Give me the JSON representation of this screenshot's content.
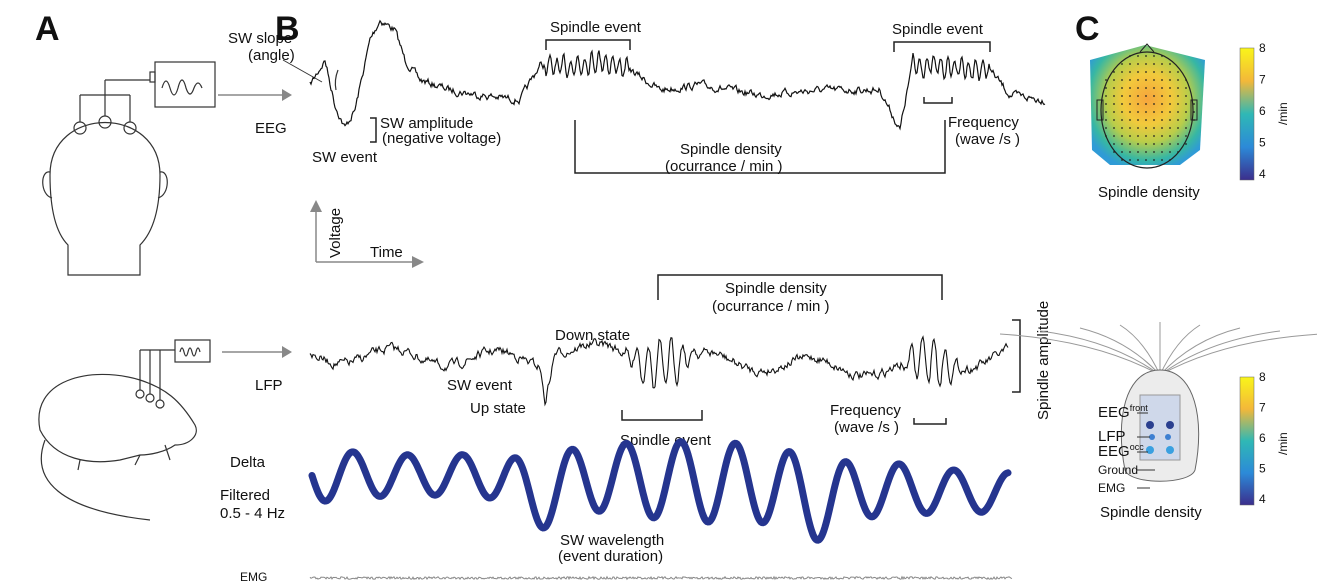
{
  "panels": {
    "a": "A",
    "b": "B",
    "c": "C"
  },
  "eeg": {
    "label": "EEG",
    "sw_slope": [
      "SW slope",
      "(angle)"
    ],
    "sw_amplitude": [
      "SW amplitude",
      "(negative voltage)"
    ],
    "sw_event": "SW event",
    "spindle_event_1": "Spindle event",
    "spindle_event_2": "Spindle event",
    "spindle_density": [
      "Spindle density",
      "(ocurrance / min )"
    ],
    "frequency": [
      "Frequency",
      "(wave /s )"
    ]
  },
  "axes": {
    "y": "Voltage",
    "x": "Time"
  },
  "lfp": {
    "label": "LFP",
    "spindle_density": [
      "Spindle density",
      "(ocurrance / min )"
    ],
    "down_state": "Down state",
    "sw_event": "SW event",
    "up_state": "Up state",
    "spindle_event": "Spindle event",
    "frequency": [
      "Frequency",
      "(wave /s )"
    ],
    "spindle_amplitude": "Spindle amplitude"
  },
  "delta": {
    "label": "Delta",
    "filter": [
      "Filtered",
      "0.5 - 4 Hz"
    ],
    "sw_wavelength": [
      "SW wavelength",
      "(event duration)"
    ]
  },
  "emg": {
    "label": "EMG"
  },
  "topomap": {
    "caption": "Spindle density",
    "colorbar_ticks": [
      "8",
      "7",
      "6",
      "5",
      "4"
    ],
    "unit": "/min"
  },
  "mouse_map": {
    "electrodes": [
      {
        "label": "EEG",
        "sup": "front"
      },
      {
        "label": "LFP"
      },
      {
        "label": "EEG",
        "sup": "occ"
      },
      {
        "label": "Ground"
      },
      {
        "label": "EMG"
      }
    ],
    "caption": "Spindle density",
    "colorbar_ticks": [
      "8",
      "7",
      "6",
      "5",
      "4"
    ],
    "unit": "/min"
  }
}
